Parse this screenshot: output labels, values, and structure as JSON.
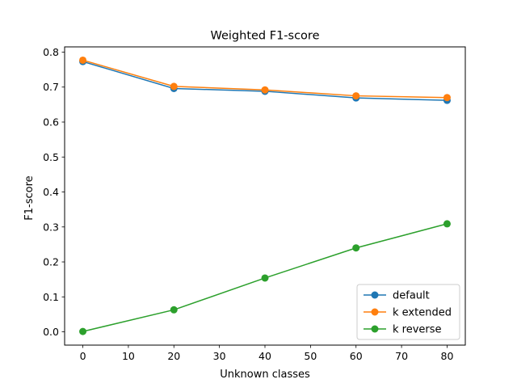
{
  "chart_data": {
    "type": "line",
    "title": "Weighted F1-score",
    "xlabel": "Unknown classes",
    "ylabel": "F1-score",
    "x": [
      0,
      20,
      40,
      60,
      80
    ],
    "xlim": [
      -4,
      84
    ],
    "ylim": [
      -0.038,
      0.815
    ],
    "xticks": [
      0,
      10,
      20,
      30,
      40,
      50,
      60,
      70,
      80
    ],
    "yticks": [
      0.0,
      0.1,
      0.2,
      0.3,
      0.4,
      0.5,
      0.6,
      0.7,
      0.8
    ],
    "xtick_labels": [
      "0",
      "10",
      "20",
      "30",
      "40",
      "50",
      "60",
      "70",
      "80"
    ],
    "ytick_labels": [
      "0.0",
      "0.1",
      "0.2",
      "0.3",
      "0.4",
      "0.5",
      "0.6",
      "0.7",
      "0.8"
    ],
    "grid": false,
    "legend_position": "bottom-right",
    "series": [
      {
        "name": "default",
        "color": "#1f77b4",
        "marker": "circle",
        "values": [
          0.773,
          0.696,
          0.688,
          0.669,
          0.662
        ]
      },
      {
        "name": "k extended",
        "color": "#ff7f0e",
        "marker": "circle",
        "values": [
          0.777,
          0.702,
          0.692,
          0.675,
          0.67
        ]
      },
      {
        "name": "k reverse",
        "color": "#2ca02c",
        "marker": "circle",
        "values": [
          0.001,
          0.063,
          0.154,
          0.24,
          0.309
        ]
      }
    ]
  }
}
